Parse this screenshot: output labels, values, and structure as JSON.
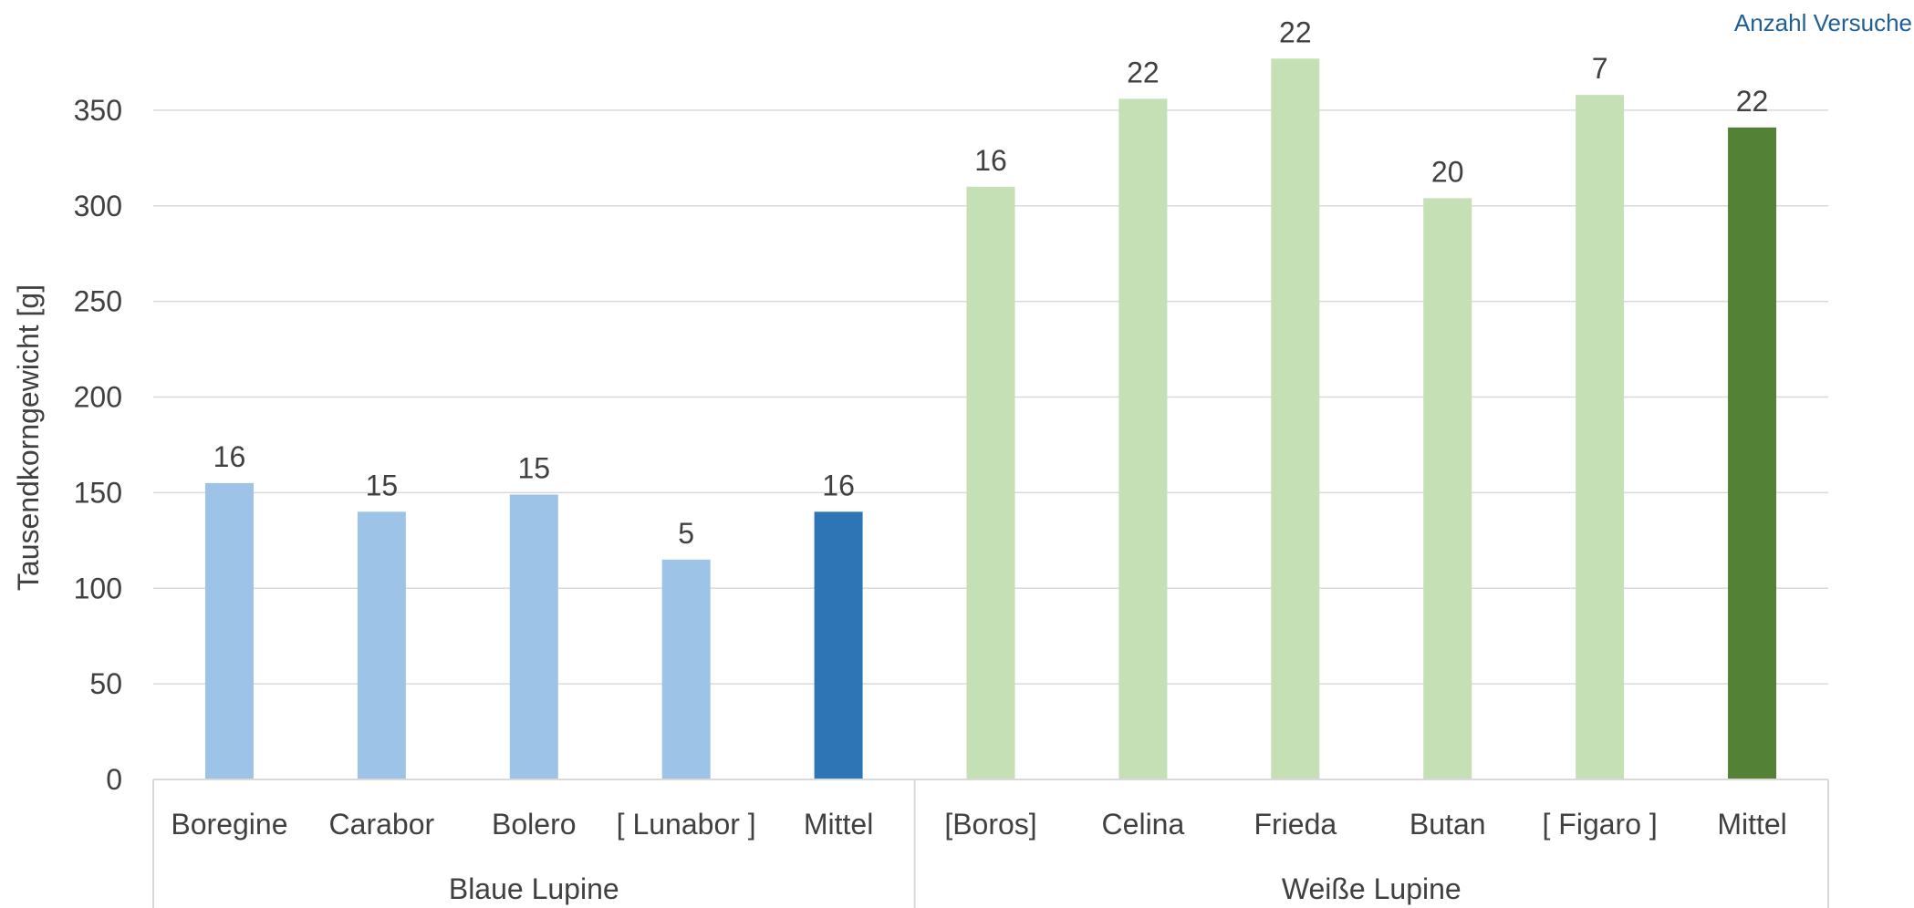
{
  "legend_note": "Anzahl Versuche",
  "chart_data": {
    "type": "bar",
    "title": "",
    "xlabel": "",
    "ylabel": "Tausendkorngewicht [g]",
    "ylim": [
      0,
      380
    ],
    "yticks": [
      0,
      50,
      100,
      150,
      200,
      250,
      300,
      350
    ],
    "grid": true,
    "groups": [
      {
        "name": "Blaue Lupine",
        "categories": [
          "Boregine",
          "Carabor",
          "Bolero",
          "[ Lunabor ]",
          "Mittel"
        ]
      },
      {
        "name": "Weiße Lupine",
        "categories": [
          "[Boros]",
          "Celina",
          "Frieda",
          "Butan",
          "[ Figaro ]",
          "Mittel"
        ]
      }
    ],
    "categories": [
      "Boregine",
      "Carabor",
      "Bolero",
      "[ Lunabor ]",
      "Mittel",
      "[Boros]",
      "Celina",
      "Frieda",
      "Butan",
      "[ Figaro ]",
      "Mittel"
    ],
    "values": [
      155,
      140,
      149,
      115,
      140,
      310,
      356,
      377,
      304,
      358,
      341
    ],
    "data_labels": [
      "16",
      "15",
      "15",
      "5",
      "16",
      "16",
      "22",
      "22",
      "20",
      "7",
      "22"
    ],
    "colors": [
      "#9dc3e6",
      "#9dc3e6",
      "#9dc3e6",
      "#9dc3e6",
      "#2e75b6",
      "#c5e0b4",
      "#c5e0b4",
      "#c5e0b4",
      "#c5e0b4",
      "#c5e0b4",
      "#538135"
    ]
  }
}
